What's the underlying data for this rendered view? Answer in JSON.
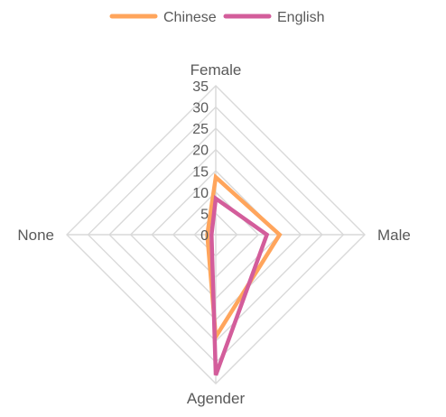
{
  "chart_data": {
    "type": "radar",
    "categories": [
      "Female",
      "Male",
      "Agender",
      "None"
    ],
    "series": [
      {
        "name": "Chinese",
        "values": [
          13.5,
          15,
          24,
          2
        ],
        "color": "#FFA55C"
      },
      {
        "name": "English",
        "values": [
          8.5,
          12,
          33,
          1
        ],
        "color": "#D35D9B"
      }
    ],
    "rlim": [
      0,
      35
    ],
    "ticks": [
      0,
      5,
      10,
      15,
      20,
      25,
      30,
      35
    ],
    "tick_labels": [
      "0",
      "5",
      "10",
      "15",
      "20",
      "25",
      "30",
      "35"
    ],
    "legend": "top",
    "grid": true,
    "grid_color": "#d9d9d9"
  }
}
